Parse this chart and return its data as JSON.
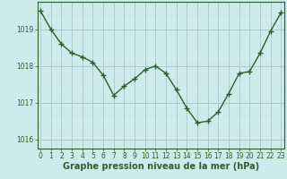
{
  "x": [
    0,
    1,
    2,
    3,
    4,
    5,
    6,
    7,
    8,
    9,
    10,
    11,
    12,
    13,
    14,
    15,
    16,
    17,
    18,
    19,
    20,
    21,
    22,
    23
  ],
  "y": [
    1019.5,
    1019.0,
    1018.6,
    1018.35,
    1018.25,
    1018.1,
    1017.75,
    1017.2,
    1017.45,
    1017.65,
    1017.9,
    1018.0,
    1017.8,
    1017.35,
    1016.85,
    1016.45,
    1016.5,
    1016.75,
    1017.25,
    1017.8,
    1017.85,
    1018.35,
    1018.95,
    1019.45
  ],
  "line_color": "#2d5e2d",
  "marker": "+",
  "marker_size": 5,
  "line_width": 1.0,
  "bg_color": "#ceeaea",
  "major_grid_color": "#b0c8c8",
  "minor_grid_color": "#d8ecec",
  "xlabel": "Graphe pression niveau de la mer (hPa)",
  "xlabel_color": "#2d5e2d",
  "xlabel_fontsize": 7,
  "tick_color": "#2d5e2d",
  "tick_fontsize": 5.5,
  "ylim": [
    1015.75,
    1019.75
  ],
  "yticks": [
    1016,
    1017,
    1018,
    1019
  ],
  "xticks": [
    0,
    1,
    2,
    3,
    4,
    5,
    6,
    7,
    8,
    9,
    10,
    11,
    12,
    13,
    14,
    15,
    16,
    17,
    18,
    19,
    20,
    21,
    22,
    23
  ],
  "xlim": [
    -0.3,
    23.3
  ]
}
